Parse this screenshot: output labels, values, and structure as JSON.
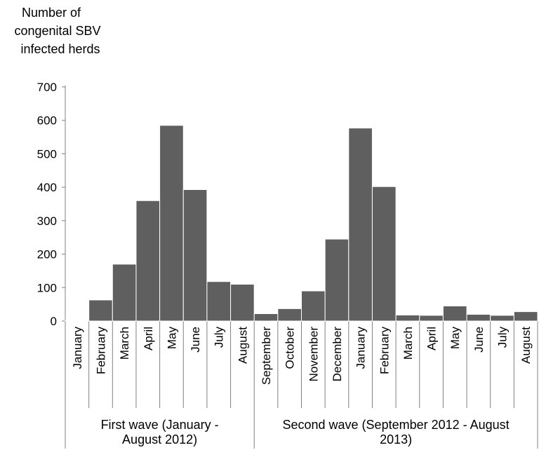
{
  "chart_data": {
    "type": "bar",
    "ylabel_lines": [
      "Number of",
      "congenital SBV",
      "infected herds"
    ],
    "ylim": [
      0,
      700
    ],
    "yticks": [
      0,
      100,
      200,
      300,
      400,
      500,
      600,
      700
    ],
    "grid": false,
    "categories": [
      "January",
      "February",
      "March",
      "April",
      "May",
      "June",
      "July",
      "August",
      "September",
      "October",
      "November",
      "December",
      "January",
      "February",
      "March",
      "April",
      "May",
      "June",
      "July",
      "August"
    ],
    "values": [
      2,
      63,
      170,
      360,
      585,
      393,
      118,
      110,
      22,
      37,
      90,
      245,
      577,
      402,
      18,
      17,
      45,
      20,
      17,
      28
    ],
    "bar_color": "#5f5f5f",
    "groups": [
      {
        "label_lines": [
          "First wave  (January -",
          "August 2012)"
        ],
        "start": 0,
        "end": 7
      },
      {
        "label_lines": [
          "Second wave (September 2012 - August",
          "2013)"
        ],
        "start": 8,
        "end": 19
      }
    ]
  }
}
